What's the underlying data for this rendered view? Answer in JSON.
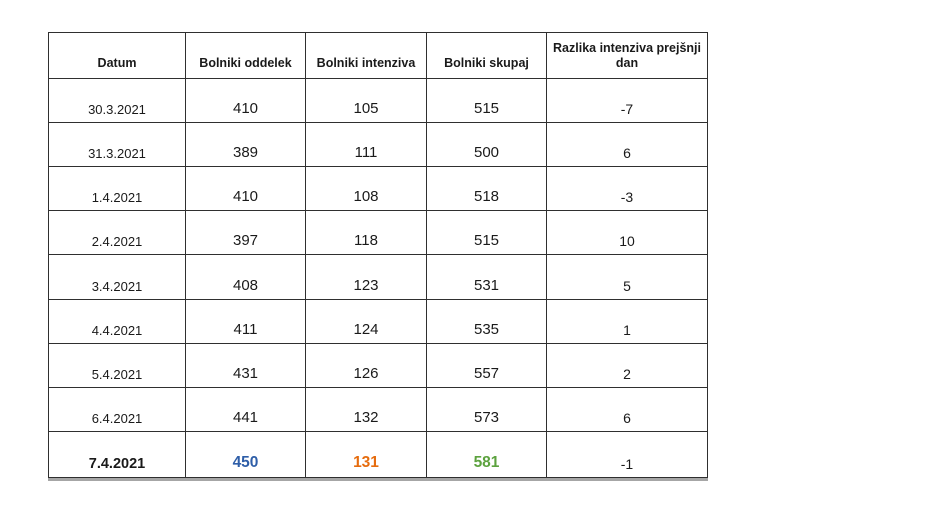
{
  "table": {
    "columns": [
      {
        "key": "datum",
        "label": "Datum"
      },
      {
        "key": "oddelek",
        "label": "Bolniki oddelek"
      },
      {
        "key": "intenziva",
        "label": "Bolniki intenziva"
      },
      {
        "key": "skupaj",
        "label": "Bolniki skupaj"
      },
      {
        "key": "razlika",
        "label": "Razlika intenziva prejšnji dan"
      }
    ],
    "rows": [
      {
        "datum": "30.3.2021",
        "oddelek": "410",
        "intenziva": "105",
        "skupaj": "515",
        "razlika": "-7",
        "bold": false
      },
      {
        "datum": "31.3.2021",
        "oddelek": "389",
        "intenziva": "111",
        "skupaj": "500",
        "razlika": "6",
        "bold": false
      },
      {
        "datum": "1.4.2021",
        "oddelek": "410",
        "intenziva": "108",
        "skupaj": "518",
        "razlika": "-3",
        "bold": false
      },
      {
        "datum": "2.4.2021",
        "oddelek": "397",
        "intenziva": "118",
        "skupaj": "515",
        "razlika": "10",
        "bold": false
      },
      {
        "datum": "3.4.2021",
        "oddelek": "408",
        "intenziva": "123",
        "skupaj": "531",
        "razlika": "5",
        "bold": false
      },
      {
        "datum": "4.4.2021",
        "oddelek": "411",
        "intenziva": "124",
        "skupaj": "535",
        "razlika": "1",
        "bold": false
      },
      {
        "datum": "5.4.2021",
        "oddelek": "431",
        "intenziva": "126",
        "skupaj": "557",
        "razlika": "2",
        "bold": false
      },
      {
        "datum": "6.4.2021",
        "oddelek": "441",
        "intenziva": "132",
        "skupaj": "573",
        "razlika": "6",
        "bold": false
      },
      {
        "datum": "7.4.2021",
        "oddelek": "450",
        "intenziva": "131",
        "skupaj": "581",
        "razlika": "-1",
        "bold": true
      }
    ],
    "colors": {
      "blue": "#4A72B8",
      "blue_bold": "#2E5EA8",
      "orange": "#ED7D31",
      "orange_bold": "#E66C0E",
      "green": "#9BBB7C",
      "green_bold": "#5CA23E",
      "border": "#2F2F2F"
    }
  },
  "chart_data": {
    "type": "table",
    "title": "",
    "columns": [
      "Datum",
      "Bolniki oddelek",
      "Bolniki intenziva",
      "Bolniki skupaj",
      "Razlika intenziva prejšnji dan"
    ],
    "x": [
      "30.3.2021",
      "31.3.2021",
      "1.4.2021",
      "2.4.2021",
      "3.4.2021",
      "4.4.2021",
      "5.4.2021",
      "6.4.2021",
      "7.4.2021"
    ],
    "series": [
      {
        "name": "Bolniki oddelek",
        "values": [
          410,
          389,
          410,
          397,
          408,
          411,
          431,
          441,
          450
        ]
      },
      {
        "name": "Bolniki intenziva",
        "values": [
          105,
          111,
          108,
          118,
          123,
          124,
          126,
          132,
          131
        ]
      },
      {
        "name": "Bolniki skupaj",
        "values": [
          515,
          500,
          518,
          515,
          531,
          535,
          557,
          573,
          581
        ]
      },
      {
        "name": "Razlika intenziva prejšnji dan",
        "values": [
          -7,
          6,
          -3,
          10,
          5,
          1,
          2,
          6,
          -1
        ]
      }
    ]
  }
}
